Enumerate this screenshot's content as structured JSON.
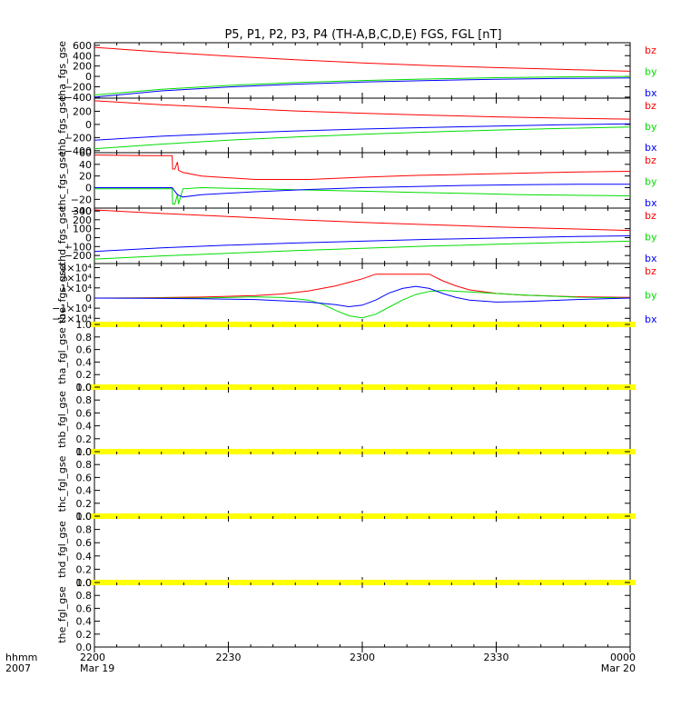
{
  "title": "P5, P1, P2, P3, P4 (TH-A,B,C,D,E) FGS, FGL [nT]",
  "time_axis": {
    "row_label_1": "hhmm",
    "row_label_2": "2007",
    "ticks": [
      {
        "label": "2200",
        "sub": "Mar 19",
        "hours": 0
      },
      {
        "label": "2230",
        "sub": "",
        "hours": 0.5
      },
      {
        "label": "2300",
        "sub": "",
        "hours": 1.0
      },
      {
        "label": "2330",
        "sub": "",
        "hours": 1.5
      },
      {
        "label": "0000",
        "sub": "Mar 20",
        "hours": 2.0
      }
    ]
  },
  "colors": {
    "bz": "#ff0000",
    "by": "#00dd00",
    "bx": "#0000ff",
    "fgl_band": "#ffff00",
    "frame": "#000000"
  },
  "chart_data": [
    {
      "type": "line",
      "ylabel": "tha_fgs_gse",
      "ylim": [
        -420,
        650
      ],
      "yticks": [
        {
          "v": 600,
          "t": "600"
        },
        {
          "v": 400,
          "t": "400"
        },
        {
          "v": 200,
          "t": "200"
        },
        {
          "v": 0,
          "t": "0"
        },
        {
          "v": -200,
          "t": "−200"
        },
        {
          "v": -400,
          "t": "−400"
        }
      ],
      "legend": [
        "bz",
        "by",
        "bx"
      ],
      "series": [
        {
          "name": "bz",
          "x": [
            0,
            0.25,
            0.5,
            0.75,
            1.0,
            1.25,
            1.5,
            1.75,
            2.0
          ],
          "y": [
            560,
            470,
            390,
            320,
            260,
            210,
            170,
            135,
            100
          ]
        },
        {
          "name": "by",
          "x": [
            0,
            0.25,
            0.5,
            0.75,
            1.0,
            1.25,
            1.5,
            1.75,
            2.0
          ],
          "y": [
            -360,
            -250,
            -175,
            -120,
            -80,
            -50,
            -25,
            -10,
            0
          ]
        },
        {
          "name": "bx",
          "x": [
            0,
            0.25,
            0.5,
            0.75,
            1.0,
            1.25,
            1.5,
            1.75,
            2.0
          ],
          "y": [
            -400,
            -280,
            -205,
            -150,
            -110,
            -80,
            -55,
            -40,
            -30
          ]
        }
      ]
    },
    {
      "type": "line",
      "ylabel": "thb_fgs_gse",
      "ylim": [
        -430,
        400
      ],
      "yticks": [
        {
          "v": 200,
          "t": "200"
        },
        {
          "v": 0,
          "t": "0"
        },
        {
          "v": -200,
          "t": "−200"
        },
        {
          "v": -400,
          "t": "−400"
        }
      ],
      "legend": [
        "bz",
        "by",
        "bx"
      ],
      "series": [
        {
          "name": "bz",
          "x": [
            0,
            0.25,
            0.5,
            0.75,
            1.0,
            1.25,
            1.5,
            1.75,
            2.0
          ],
          "y": [
            360,
            300,
            250,
            205,
            170,
            140,
            115,
            95,
            80
          ]
        },
        {
          "name": "by",
          "x": [
            0,
            0.25,
            0.5,
            0.75,
            1.0,
            1.25,
            1.5,
            1.75,
            2.0
          ],
          "y": [
            -370,
            -300,
            -240,
            -190,
            -150,
            -115,
            -85,
            -60,
            -40
          ]
        },
        {
          "name": "bx",
          "x": [
            0,
            0.25,
            0.5,
            0.75,
            1.0,
            1.25,
            1.5,
            1.75,
            2.0
          ],
          "y": [
            -240,
            -180,
            -135,
            -100,
            -70,
            -45,
            -25,
            -5,
            10
          ]
        }
      ]
    },
    {
      "type": "line",
      "ylabel": "thc_fgs_gse",
      "ylim": [
        -35,
        60
      ],
      "yticks": [
        {
          "v": 60,
          "t": "60"
        },
        {
          "v": 40,
          "t": "40"
        },
        {
          "v": 20,
          "t": "20"
        },
        {
          "v": 0,
          "t": "0"
        },
        {
          "v": -20,
          "t": "−20"
        },
        {
          "v": -40,
          "t": "−40"
        }
      ],
      "legend": [
        "bz",
        "by",
        "bx"
      ],
      "series": [
        {
          "name": "bz",
          "x": [
            0,
            0.2,
            0.29,
            0.292,
            0.3,
            0.31,
            0.314,
            0.33,
            0.4,
            0.6,
            0.8,
            1.0,
            1.2,
            1.4,
            1.6,
            1.8,
            2.0
          ],
          "y": [
            56,
            55,
            55,
            32,
            32,
            44,
            30,
            26,
            20,
            14,
            14,
            18,
            21,
            23,
            25,
            27,
            28
          ]
        },
        {
          "name": "by",
          "x": [
            0,
            0.2,
            0.29,
            0.292,
            0.3,
            0.31,
            0.314,
            0.33,
            0.4,
            0.6,
            0.8,
            1.0,
            1.2,
            1.4,
            1.6,
            1.8,
            2.0
          ],
          "y": [
            -2,
            -2,
            -2,
            -28,
            -28,
            -12,
            -28,
            -2,
            0,
            -2,
            -4,
            -6,
            -8,
            -10,
            -12,
            -13,
            -14
          ]
        },
        {
          "name": "bx",
          "x": [
            0,
            0.2,
            0.29,
            0.31,
            0.33,
            0.4,
            0.6,
            0.8,
            1.0,
            1.2,
            1.4,
            1.6,
            1.8,
            2.0
          ],
          "y": [
            0,
            0,
            0,
            -12,
            -16,
            -12,
            -7,
            -3,
            0,
            2,
            4,
            5,
            6,
            6
          ]
        }
      ]
    },
    {
      "type": "line",
      "ylabel": "thd_fgs_gse",
      "ylim": [
        -290,
        330
      ],
      "yticks": [
        {
          "v": 300,
          "t": "300"
        },
        {
          "v": 200,
          "t": "200"
        },
        {
          "v": 100,
          "t": "100"
        },
        {
          "v": 0,
          "t": "0"
        },
        {
          "v": -100,
          "t": "−100"
        },
        {
          "v": -200,
          "t": "−200"
        }
      ],
      "legend": [
        "bz",
        "by",
        "bx"
      ],
      "series": [
        {
          "name": "bz",
          "x": [
            0,
            0.25,
            0.5,
            0.75,
            1.0,
            1.25,
            1.5,
            1.75,
            2.0
          ],
          "y": [
            310,
            270,
            235,
            200,
            170,
            145,
            120,
            100,
            80
          ]
        },
        {
          "name": "by",
          "x": [
            0,
            0.25,
            0.5,
            0.75,
            1.0,
            1.25,
            1.5,
            1.75,
            2.0
          ],
          "y": [
            -240,
            -205,
            -175,
            -145,
            -120,
            -95,
            -75,
            -55,
            -40
          ]
        },
        {
          "name": "bx",
          "x": [
            0,
            0.25,
            0.5,
            0.75,
            1.0,
            1.25,
            1.5,
            1.75,
            2.0
          ],
          "y": [
            -155,
            -115,
            -85,
            -60,
            -40,
            -20,
            -5,
            10,
            20
          ]
        }
      ]
    },
    {
      "type": "line",
      "ylabel": "the_fgs_gse",
      "ylim": [
        -26000,
        34000
      ],
      "yticks": [
        {
          "v": 30000,
          "t": "3×10⁴"
        },
        {
          "v": 20000,
          "t": "2×10⁴"
        },
        {
          "v": 10000,
          "t": "1×10⁴"
        },
        {
          "v": 0,
          "t": "0"
        },
        {
          "v": -10000,
          "t": "−1×10⁴"
        },
        {
          "v": -20000,
          "t": "−2×10⁴"
        }
      ],
      "legend": [
        "bz",
        "by",
        "bx"
      ],
      "series": [
        {
          "name": "bz",
          "x": [
            0,
            0.2,
            0.4,
            0.6,
            0.7,
            0.8,
            0.9,
            1.0,
            1.05,
            1.1,
            1.2,
            1.25,
            1.3,
            1.35,
            1.4,
            1.5,
            1.6,
            1.8,
            2.0
          ],
          "y": [
            0,
            300,
            1000,
            2500,
            4000,
            7000,
            12000,
            19000,
            23500,
            23500,
            23500,
            23500,
            17000,
            12000,
            8000,
            4500,
            2800,
            1200,
            600
          ]
        },
        {
          "name": "by",
          "x": [
            0,
            0.2,
            0.4,
            0.6,
            0.7,
            0.8,
            0.85,
            0.9,
            0.95,
            1.0,
            1.05,
            1.1,
            1.15,
            1.2,
            1.25,
            1.3,
            1.4,
            1.6,
            1.8,
            2.0
          ],
          "y": [
            0,
            0,
            0,
            1200,
            500,
            -2000,
            -6000,
            -12000,
            -17500,
            -19500,
            -16000,
            -9000,
            -2000,
            3500,
            6500,
            7500,
            6000,
            3000,
            900,
            0
          ]
        },
        {
          "name": "bx",
          "x": [
            0,
            0.2,
            0.4,
            0.6,
            0.8,
            0.9,
            0.95,
            1.0,
            1.05,
            1.1,
            1.15,
            1.2,
            1.25,
            1.3,
            1.35,
            1.4,
            1.5,
            1.6,
            1.8,
            2.0
          ],
          "y": [
            0,
            -300,
            -700,
            -1500,
            -4000,
            -6500,
            -8500,
            -7000,
            -2000,
            5000,
            9500,
            11500,
            9500,
            4500,
            500,
            -2000,
            -4000,
            -3500,
            -1500,
            0
          ]
        }
      ]
    },
    {
      "type": "line",
      "ylabel": "tha_fgl_gse",
      "ylim": [
        0,
        1.0
      ],
      "yticks": [
        {
          "v": 1.0,
          "t": "1.0"
        },
        {
          "v": 0.8,
          "t": "0.8"
        },
        {
          "v": 0.6,
          "t": "0.6"
        },
        {
          "v": 0.4,
          "t": "0.4"
        },
        {
          "v": 0.2,
          "t": "0.2"
        },
        {
          "v": 0.0,
          "t": "0.0"
        }
      ],
      "legend": [],
      "series": []
    },
    {
      "type": "line",
      "ylabel": "thb_fgl_gse",
      "ylim": [
        0,
        1.0
      ],
      "yticks": [
        {
          "v": 1.0,
          "t": "1.0"
        },
        {
          "v": 0.8,
          "t": "0.8"
        },
        {
          "v": 0.6,
          "t": "0.6"
        },
        {
          "v": 0.4,
          "t": "0.4"
        },
        {
          "v": 0.2,
          "t": "0.2"
        },
        {
          "v": 0.0,
          "t": "0.0"
        }
      ],
      "legend": [],
      "series": []
    },
    {
      "type": "line",
      "ylabel": "thc_fgl_gse",
      "ylim": [
        0,
        1.0
      ],
      "yticks": [
        {
          "v": 1.0,
          "t": "1.0"
        },
        {
          "v": 0.8,
          "t": "0.8"
        },
        {
          "v": 0.6,
          "t": "0.6"
        },
        {
          "v": 0.4,
          "t": "0.4"
        },
        {
          "v": 0.2,
          "t": "0.2"
        },
        {
          "v": 0.0,
          "t": "0.0"
        }
      ],
      "legend": [],
      "series": []
    },
    {
      "type": "line",
      "ylabel": "thd_fgl_gse",
      "ylim": [
        0,
        1.0
      ],
      "yticks": [
        {
          "v": 1.0,
          "t": "1.0"
        },
        {
          "v": 0.8,
          "t": "0.8"
        },
        {
          "v": 0.6,
          "t": "0.6"
        },
        {
          "v": 0.4,
          "t": "0.4"
        },
        {
          "v": 0.2,
          "t": "0.2"
        },
        {
          "v": 0.0,
          "t": "0.0"
        }
      ],
      "legend": [],
      "series": []
    },
    {
      "type": "line",
      "ylabel": "the_fgl_gse",
      "ylim": [
        0,
        1.0
      ],
      "yticks": [
        {
          "v": 1.0,
          "t": "1.0"
        },
        {
          "v": 0.8,
          "t": "0.8"
        },
        {
          "v": 0.6,
          "t": "0.6"
        },
        {
          "v": 0.4,
          "t": "0.4"
        },
        {
          "v": 0.2,
          "t": "0.2"
        },
        {
          "v": 0.0,
          "t": "0.0"
        }
      ],
      "legend": [],
      "series": []
    }
  ]
}
